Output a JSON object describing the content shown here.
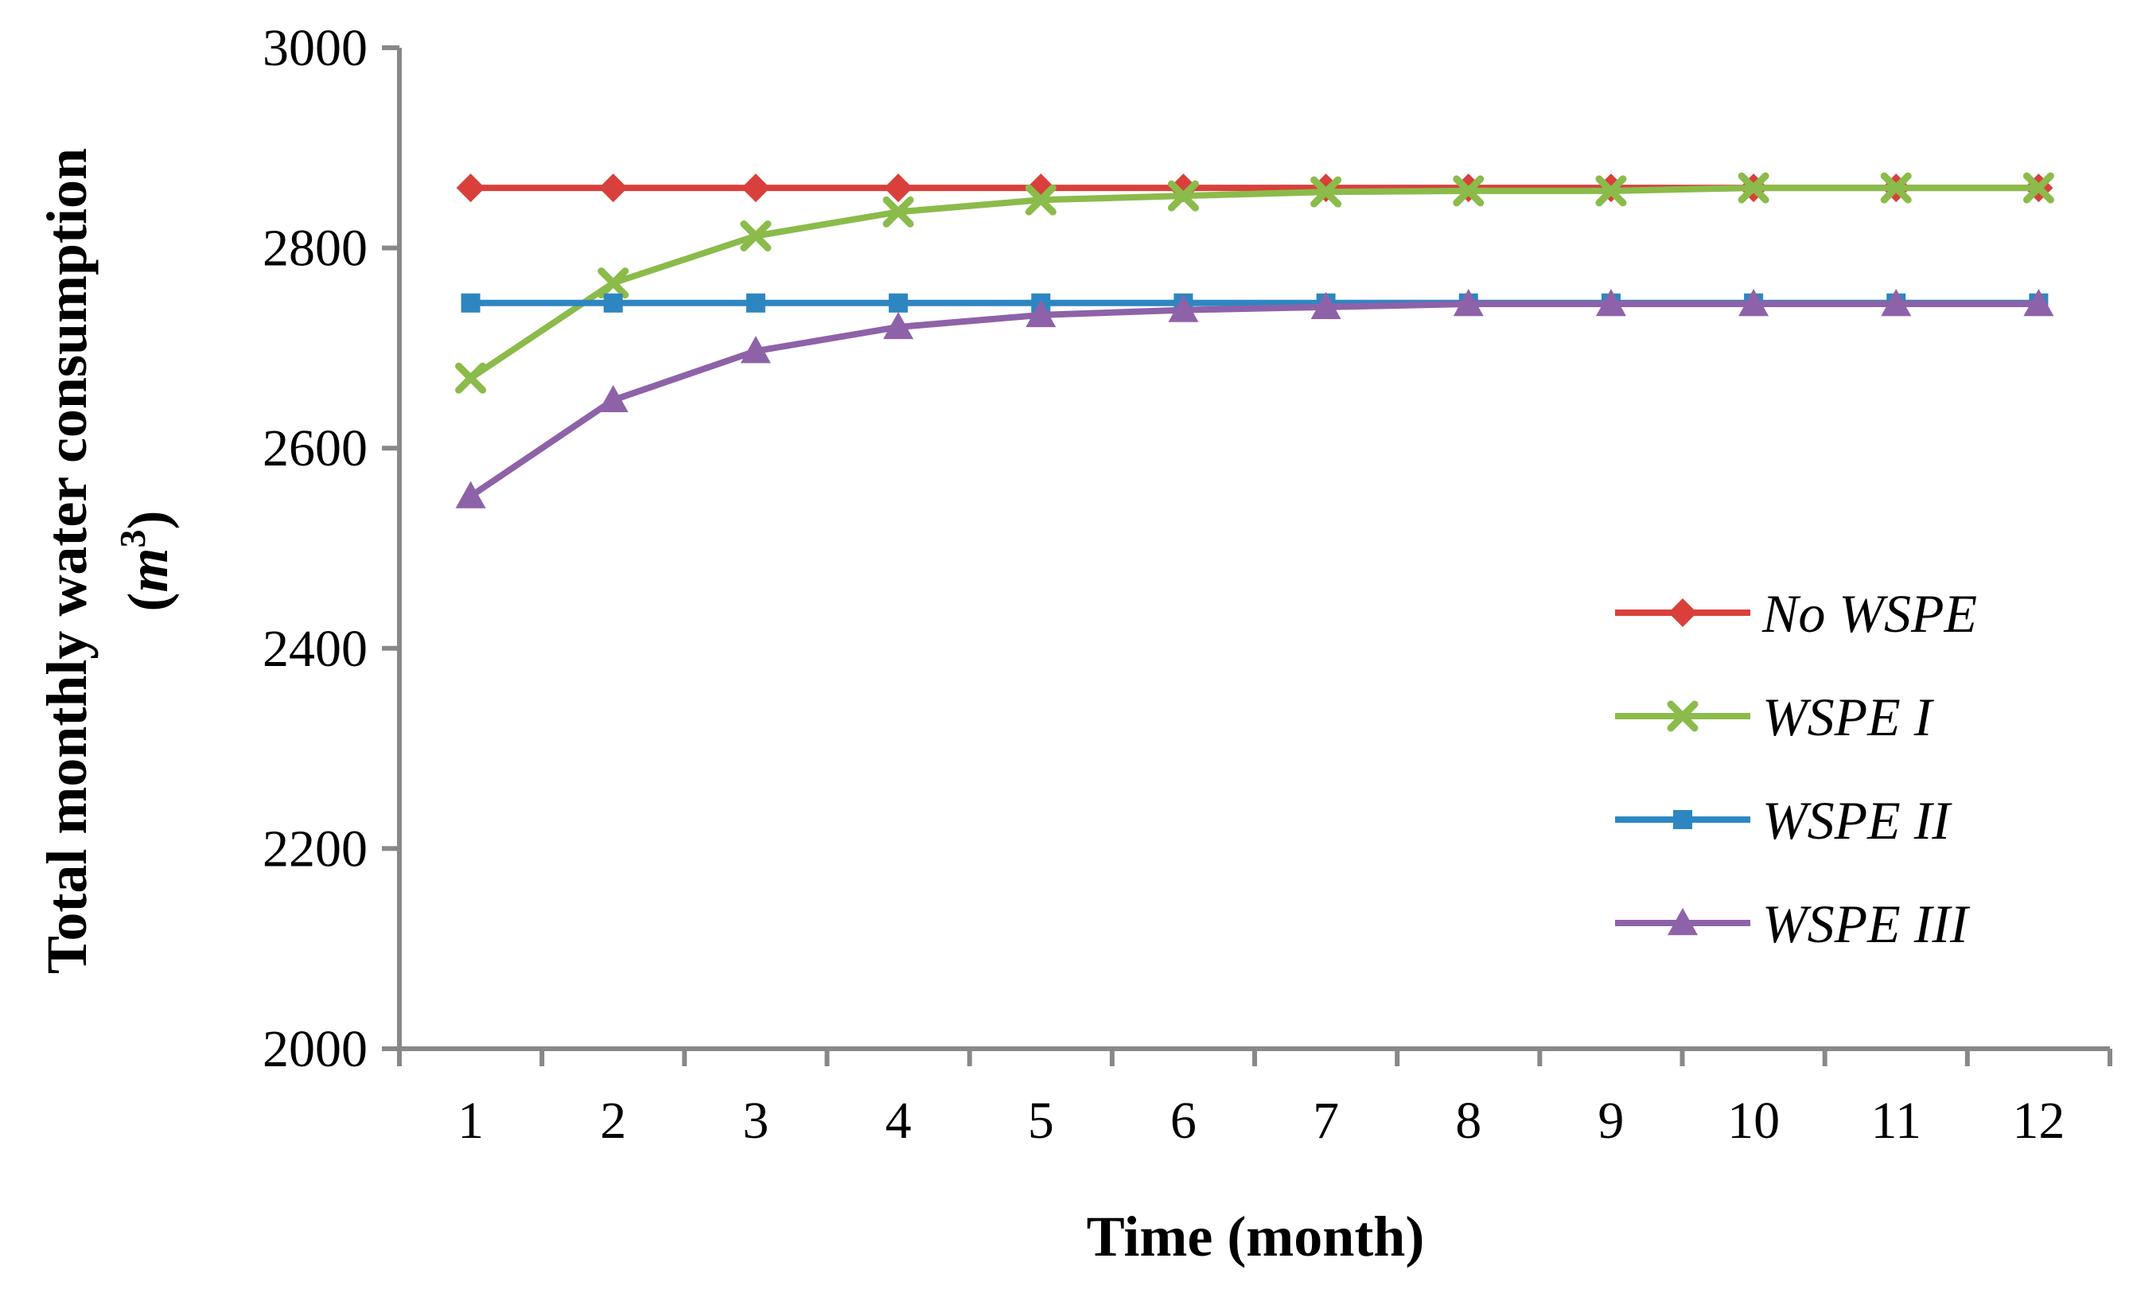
{
  "chart_data": {
    "type": "line",
    "title": "",
    "xlabel": "Time (month)",
    "ylabel_line1": "Total monthly water consumption",
    "ylabel_line2_open": "(",
    "ylabel_unit": "m",
    "ylabel_sup": "3",
    "ylabel_line2_close": ")",
    "categories": [
      "1",
      "2",
      "3",
      "4",
      "5",
      "6",
      "7",
      "8",
      "9",
      "10",
      "11",
      "12"
    ],
    "ylim": [
      2000,
      3000
    ],
    "yticks": [
      2000,
      2200,
      2400,
      2600,
      2800,
      3000
    ],
    "ytick_labels": [
      "2000",
      "2200",
      "2400",
      "2600",
      "2800",
      "3000"
    ],
    "grid": false,
    "legend_position": "right",
    "series": [
      {
        "name": "No WSPE",
        "color": "#d9403b",
        "marker": "diamond",
        "values": [
          2860,
          2860,
          2860,
          2860,
          2860,
          2860,
          2860,
          2860,
          2860,
          2860,
          2860,
          2860
        ]
      },
      {
        "name": "WSPE I",
        "color": "#8bbb4a",
        "marker": "x",
        "values": [
          2670,
          2765,
          2812,
          2836,
          2848,
          2852,
          2856,
          2857,
          2857,
          2860,
          2860,
          2860
        ]
      },
      {
        "name": "WSPE II",
        "color": "#2e86c1",
        "marker": "square",
        "values": [
          2745,
          2745,
          2745,
          2745,
          2745,
          2745,
          2745,
          2745,
          2745,
          2745,
          2745,
          2745
        ]
      },
      {
        "name": "WSPE III",
        "color": "#8e62a8",
        "marker": "triangle",
        "values": [
          2552,
          2648,
          2697,
          2721,
          2733,
          2738,
          2741,
          2744,
          2744,
          2744,
          2744,
          2744
        ]
      }
    ]
  }
}
